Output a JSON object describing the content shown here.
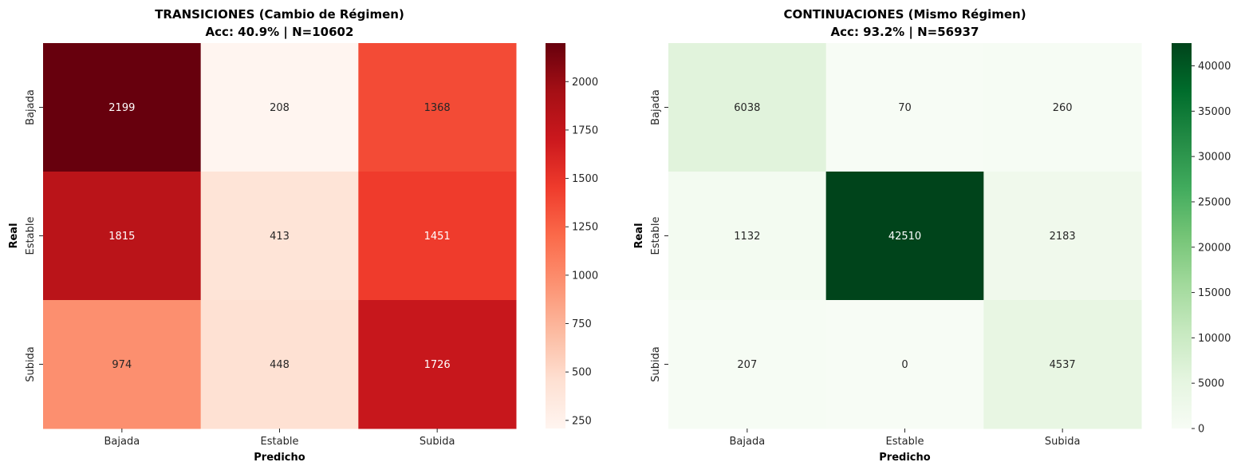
{
  "chart_data": [
    {
      "type": "heatmap",
      "title": "TRANSICIONES (Cambio de Régimen)",
      "subtitle": "Acc: 40.9% | N=10602",
      "xlabel": "Predicho",
      "ylabel": "Real",
      "x_categories": [
        "Bajada",
        "Estable",
        "Subida"
      ],
      "y_categories": [
        "Bajada",
        "Estable",
        "Subida"
      ],
      "values": [
        [
          2199,
          208,
          1368
        ],
        [
          1815,
          413,
          1451
        ],
        [
          974,
          448,
          1726
        ]
      ],
      "colormap": "Reds",
      "colors": [
        "#fff5f0",
        "#fee0d2",
        "#fcbba1",
        "#fc9272",
        "#fb6a4a",
        "#ef3b2c",
        "#cb181d",
        "#a50f15",
        "#67000d"
      ],
      "vmin": 208,
      "vmax": 2199,
      "colorbar_ticks": [
        250,
        500,
        750,
        1000,
        1250,
        1500,
        1750,
        2000
      ],
      "grid": false
    },
    {
      "type": "heatmap",
      "title": "CONTINUACIONES (Mismo Régimen)",
      "subtitle": "Acc: 93.2% | N=56937",
      "xlabel": "Predicho",
      "ylabel": "Real",
      "x_categories": [
        "Bajada",
        "Estable",
        "Subida"
      ],
      "y_categories": [
        "Bajada",
        "Estable",
        "Subida"
      ],
      "values": [
        [
          6038,
          70,
          260
        ],
        [
          1132,
          42510,
          2183
        ],
        [
          207,
          0,
          4537
        ]
      ],
      "colormap": "Greens",
      "colors": [
        "#f7fcf5",
        "#e5f5e0",
        "#c7e9c0",
        "#a1d99b",
        "#74c476",
        "#41ab5d",
        "#238b45",
        "#006d2c",
        "#00441b"
      ],
      "vmin": 0,
      "vmax": 42510,
      "colorbar_ticks": [
        0,
        5000,
        10000,
        15000,
        20000,
        25000,
        30000,
        35000,
        40000
      ],
      "grid": false
    }
  ]
}
